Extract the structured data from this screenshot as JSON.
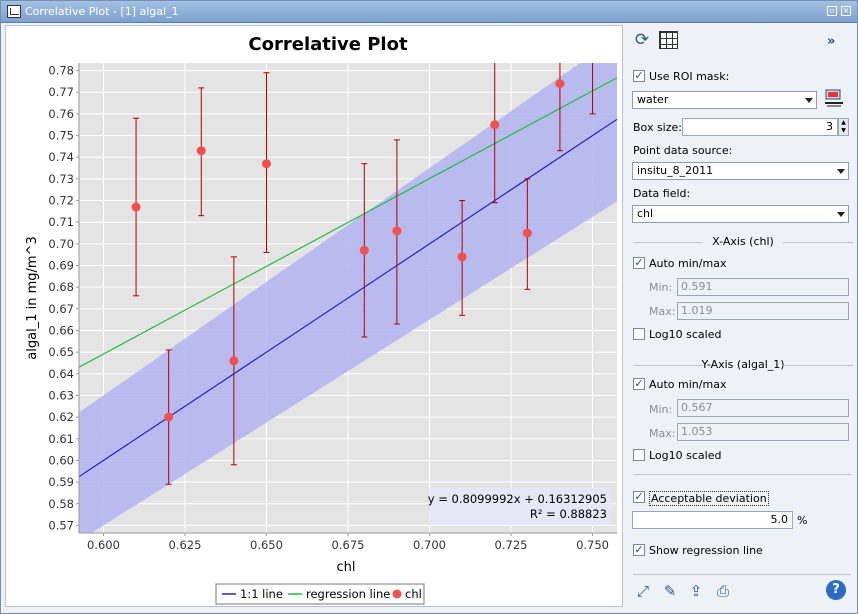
{
  "window": {
    "title": "Correlative Plot - [1] algal_1"
  },
  "colors": {
    "points": "#f05050",
    "regression": "#22bb44",
    "identity": "#2222bb",
    "band": "#b2b4f0",
    "plotbg": "#e4e4e4"
  },
  "chart_data": {
    "type": "scatter",
    "title": "Correlative Plot",
    "xlabel": "chl",
    "ylabel": "algal_1 in mg/m^3",
    "xlim": [
      0.5925,
      0.7575
    ],
    "ylim": [
      0.5665,
      0.7835
    ],
    "xticks": [
      "0.600",
      "0.625",
      "0.650",
      "0.675",
      "0.700",
      "0.725",
      "0.750"
    ],
    "xtick_values": [
      0.6,
      0.625,
      0.65,
      0.675,
      0.7,
      0.725,
      0.75
    ],
    "yticks": [
      "0.57",
      "0.58",
      "0.59",
      "0.60",
      "0.61",
      "0.62",
      "0.63",
      "0.64",
      "0.65",
      "0.66",
      "0.67",
      "0.68",
      "0.69",
      "0.70",
      "0.71",
      "0.72",
      "0.73",
      "0.74",
      "0.75",
      "0.76",
      "0.77",
      "0.78"
    ],
    "ytick_values": [
      0.57,
      0.58,
      0.59,
      0.6,
      0.61,
      0.62,
      0.63,
      0.64,
      0.65,
      0.66,
      0.67,
      0.68,
      0.69,
      0.7,
      0.71,
      0.72,
      0.73,
      0.74,
      0.75,
      0.76,
      0.77,
      0.78
    ],
    "points": [
      {
        "x": 0.61,
        "y": 0.717,
        "lo": 0.676,
        "hi": 0.758
      },
      {
        "x": 0.62,
        "y": 0.62,
        "lo": 0.589,
        "hi": 0.651
      },
      {
        "x": 0.63,
        "y": 0.743,
        "lo": 0.713,
        "hi": 0.772
      },
      {
        "x": 0.64,
        "y": 0.646,
        "lo": 0.598,
        "hi": 0.694
      },
      {
        "x": 0.65,
        "y": 0.737,
        "lo": 0.696,
        "hi": 0.779
      },
      {
        "x": 0.68,
        "y": 0.697,
        "lo": 0.657,
        "hi": 0.737
      },
      {
        "x": 0.69,
        "y": 0.706,
        "lo": 0.663,
        "hi": 0.748
      },
      {
        "x": 0.71,
        "y": 0.694,
        "lo": 0.667,
        "hi": 0.72
      },
      {
        "x": 0.72,
        "y": 0.755,
        "lo": 0.719,
        "hi": 0.79
      },
      {
        "x": 0.73,
        "y": 0.705,
        "lo": 0.679,
        "hi": 0.73
      },
      {
        "x": 0.74,
        "y": 0.774,
        "lo": 0.743,
        "hi": 0.79
      },
      {
        "x": 0.75,
        "y": 0.79,
        "lo": 0.76,
        "hi": 0.79
      }
    ],
    "regression": {
      "slope": 0.8099992,
      "intercept": 0.16312905
    },
    "deviation_percent": 5.0,
    "equation_text": "y = 0.8099992x + 0.16312905",
    "r2_text": "R² = 0.88823",
    "legend": [
      "1:1 line",
      "regression line",
      "chl"
    ],
    "grid": true
  },
  "sidebar": {
    "refresh_icon": "refresh-icon",
    "table_icon": "table-icon",
    "collapse_label": "»",
    "use_roi_label": "Use ROI mask:",
    "roi_value": "water",
    "box_size_label": "Box size:",
    "box_size_value": "3",
    "point_source_label": "Point data source:",
    "point_source_value": "insitu_8_2011",
    "data_field_label": "Data field:",
    "data_field_value": "chl",
    "xaxis_title": "X-Axis (chl)",
    "x_auto_label": "Auto min/max",
    "x_min_label": "Min:",
    "x_min_value": "0.591",
    "x_max_label": "Max:",
    "x_max_value": "1.019",
    "x_log_label": "Log10 scaled",
    "yaxis_title": "Y-Axis (algal_1)",
    "y_auto_label": "Auto min/max",
    "y_min_label": "Min:",
    "y_min_value": "0.567",
    "y_max_label": "Max:",
    "y_max_value": "1.053",
    "y_log_label": "Log10 scaled",
    "acceptable_label": "Acceptable deviation",
    "deviation_value": "5.0",
    "percent": "%",
    "show_regression_label": "Show regression line",
    "help": "?"
  }
}
